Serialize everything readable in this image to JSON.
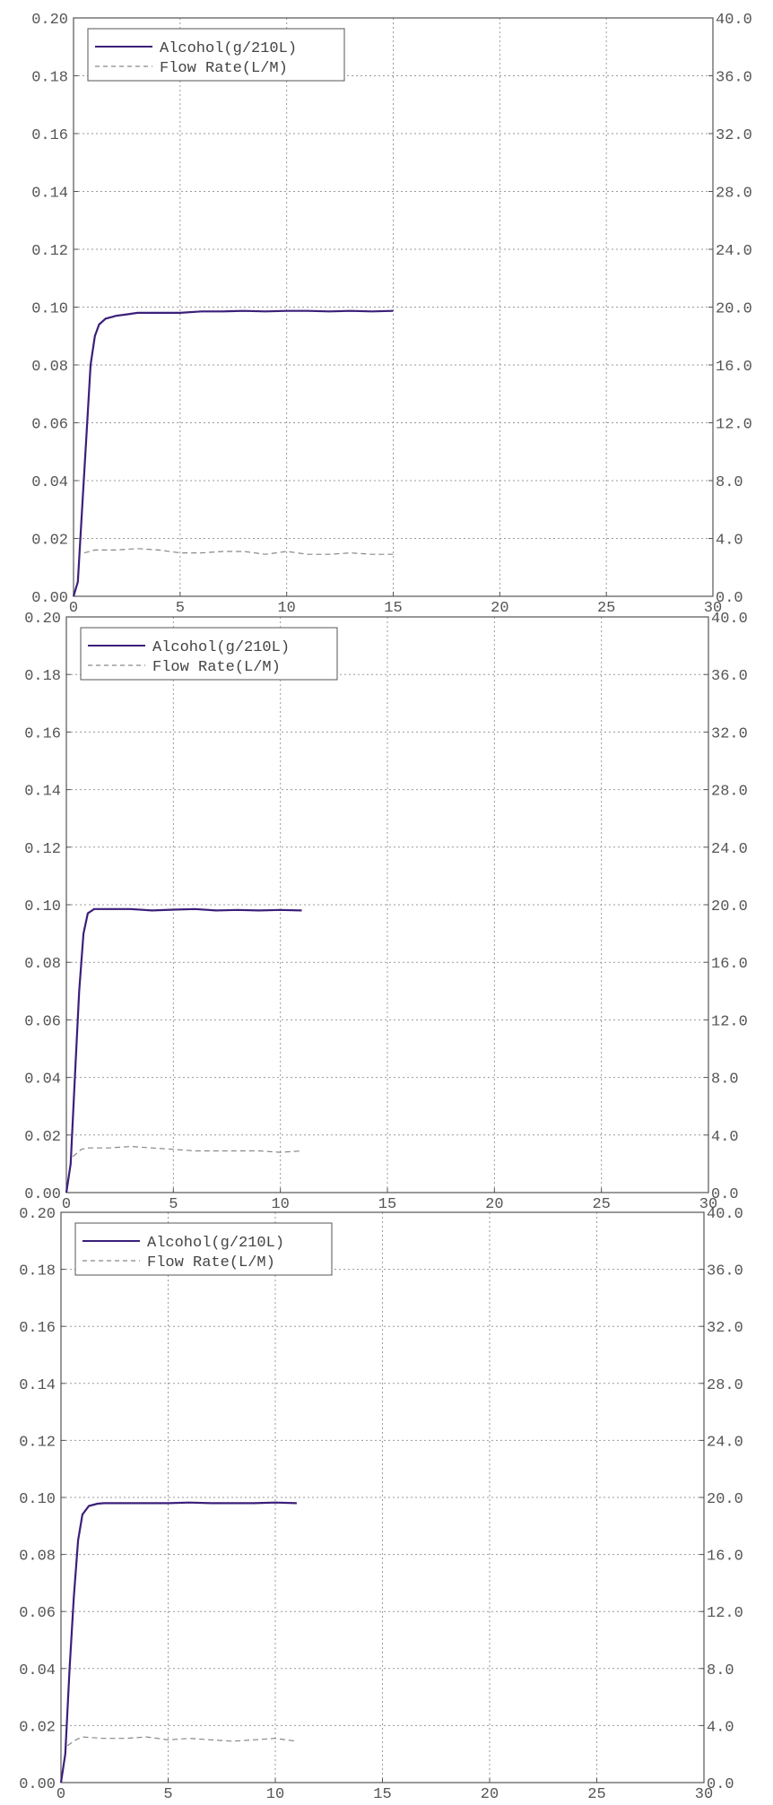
{
  "chart_data": [
    {
      "type": "line",
      "xlim": [
        0,
        30
      ],
      "ylim": [
        0,
        0.2
      ],
      "y2lim": [
        0,
        40
      ],
      "x_ticks": [
        "0",
        "5",
        "10",
        "15",
        "20",
        "25",
        "30"
      ],
      "y_ticks": [
        "0.00",
        "0.02",
        "0.04",
        "0.06",
        "0.08",
        "0.10",
        "0.12",
        "0.14",
        "0.16",
        "0.18",
        "0.20"
      ],
      "y2_ticks": [
        "0.0",
        "4.0",
        "8.0",
        "12.0",
        "16.0",
        "20.0",
        "24.0",
        "28.0",
        "32.0",
        "36.0",
        "40.0"
      ],
      "grid": true,
      "legend_position": "top-left",
      "series": [
        {
          "name": "Alcohol(g/210L)",
          "axis": "left",
          "color": "#3b1f7a",
          "style": "solid",
          "x": [
            0,
            0.2,
            0.4,
            0.6,
            0.8,
            1.0,
            1.2,
            1.5,
            2,
            2.5,
            3,
            4,
            5,
            6,
            7,
            8,
            9,
            10,
            11,
            12,
            13,
            14,
            15
          ],
          "y": [
            0,
            0.005,
            0.03,
            0.055,
            0.08,
            0.09,
            0.094,
            0.096,
            0.097,
            0.0975,
            0.098,
            0.098,
            0.098,
            0.0985,
            0.0985,
            0.0987,
            0.0985,
            0.0987,
            0.0987,
            0.0985,
            0.0987,
            0.0985,
            0.0987
          ]
        },
        {
          "name": "Flow Rate(L/M)",
          "axis": "right",
          "color": "#888888",
          "style": "dashed",
          "x": [
            0.5,
            1,
            2,
            3,
            4,
            5,
            6,
            7,
            8,
            9,
            10,
            11,
            12,
            13,
            14,
            15
          ],
          "y": [
            3.0,
            3.2,
            3.2,
            3.3,
            3.2,
            3.0,
            3.0,
            3.1,
            3.1,
            2.9,
            3.1,
            2.9,
            2.9,
            3.0,
            2.9,
            2.9
          ]
        }
      ]
    },
    {
      "type": "line",
      "xlim": [
        0,
        30
      ],
      "ylim": [
        0,
        0.2
      ],
      "y2lim": [
        0,
        40
      ],
      "x_ticks": [
        "0",
        "5",
        "10",
        "15",
        "20",
        "25",
        "30"
      ],
      "y_ticks": [
        "0.00",
        "0.02",
        "0.04",
        "0.06",
        "0.08",
        "0.10",
        "0.12",
        "0.14",
        "0.16",
        "0.18",
        "0.20"
      ],
      "y2_ticks": [
        "0.0",
        "4.0",
        "8.0",
        "12.0",
        "16.0",
        "20.0",
        "24.0",
        "28.0",
        "32.0",
        "36.0",
        "40.0"
      ],
      "grid": true,
      "legend_position": "top-left",
      "series": [
        {
          "name": "Alcohol(g/210L)",
          "axis": "left",
          "color": "#3b1f7a",
          "style": "solid",
          "x": [
            0,
            0.2,
            0.4,
            0.6,
            0.8,
            1.0,
            1.3,
            1.7,
            2,
            3,
            4,
            5,
            6,
            7,
            8,
            9,
            10,
            11
          ],
          "y": [
            0,
            0.01,
            0.04,
            0.07,
            0.09,
            0.097,
            0.0985,
            0.0985,
            0.0985,
            0.0985,
            0.098,
            0.0983,
            0.0985,
            0.098,
            0.0982,
            0.098,
            0.0982,
            0.098
          ]
        },
        {
          "name": "Flow Rate(L/M)",
          "axis": "right",
          "color": "#888888",
          "style": "dashed",
          "x": [
            0.3,
            0.7,
            1,
            2,
            3,
            4,
            5,
            6,
            7,
            8,
            9,
            10,
            11
          ],
          "y": [
            2.5,
            3.0,
            3.1,
            3.1,
            3.2,
            3.1,
            3.0,
            2.9,
            2.9,
            2.9,
            2.9,
            2.8,
            2.9
          ]
        }
      ]
    },
    {
      "type": "line",
      "xlim": [
        0,
        30
      ],
      "ylim": [
        0,
        0.2
      ],
      "y2lim": [
        0,
        40
      ],
      "x_ticks": [
        "0",
        "5",
        "10",
        "15",
        "20",
        "25",
        "30"
      ],
      "y_ticks": [
        "0.00",
        "0.02",
        "0.04",
        "0.06",
        "0.08",
        "0.10",
        "0.12",
        "0.14",
        "0.16",
        "0.18",
        "0.20"
      ],
      "y2_ticks": [
        "0.0",
        "4.0",
        "8.0",
        "12.0",
        "16.0",
        "20.0",
        "24.0",
        "28.0",
        "32.0",
        "36.0",
        "40.0"
      ],
      "grid": true,
      "legend_position": "top-left",
      "series": [
        {
          "name": "Alcohol(g/210L)",
          "axis": "left",
          "color": "#3b1f7a",
          "style": "solid",
          "x": [
            0,
            0.2,
            0.4,
            0.6,
            0.8,
            1.0,
            1.3,
            1.7,
            2,
            3,
            4,
            5,
            6,
            7,
            8,
            9,
            10,
            11
          ],
          "y": [
            0,
            0.01,
            0.04,
            0.065,
            0.085,
            0.094,
            0.097,
            0.0978,
            0.098,
            0.098,
            0.098,
            0.098,
            0.0982,
            0.098,
            0.098,
            0.098,
            0.0982,
            0.098
          ]
        },
        {
          "name": "Flow Rate(L/M)",
          "axis": "right",
          "color": "#888888",
          "style": "dashed",
          "x": [
            0.3,
            0.7,
            1,
            2,
            3,
            4,
            5,
            6,
            7,
            8,
            9,
            10,
            11
          ],
          "y": [
            2.6,
            3.0,
            3.2,
            3.1,
            3.1,
            3.2,
            3.0,
            3.1,
            3.0,
            2.9,
            3.0,
            3.1,
            2.9
          ]
        }
      ]
    }
  ]
}
